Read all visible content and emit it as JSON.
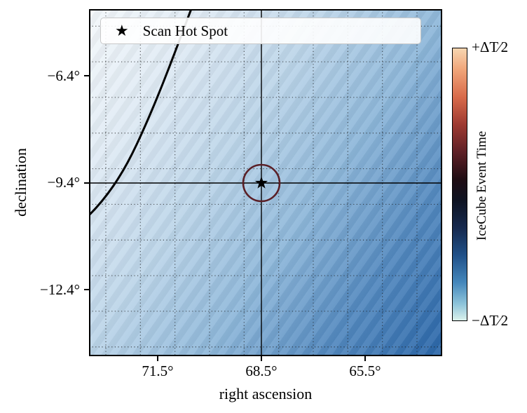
{
  "chart_data": {
    "type": "heatmap",
    "title": "",
    "xlabel": "right ascension",
    "ylabel": "declination",
    "x_ticks": [
      "71.5°",
      "68.5°",
      "65.5°"
    ],
    "x_tick_values_deg": [
      71.5,
      68.5,
      65.5
    ],
    "y_ticks": [
      "−6.4°",
      "−9.4°",
      "−12.4°"
    ],
    "y_tick_values_deg": [
      -6.4,
      -9.4,
      -12.4
    ],
    "x_axis_reversed": true,
    "x_range_deg": [
      73.5,
      63.3
    ],
    "y_range_deg": [
      -14.3,
      -4.5
    ],
    "grid": {
      "style": "dotted",
      "spacing_deg": 1
    },
    "legend": {
      "marker": "star",
      "marker_glyph": "★",
      "label": "Scan Hot Spot",
      "position": "upper center"
    },
    "hot_spot": {
      "ra_deg": 68.5,
      "dec_deg": -9.4,
      "marker": "star",
      "color": "#000000"
    },
    "contour_circle": {
      "ra_deg": 68.5,
      "dec_deg": -9.4,
      "radius_deg": 0.55,
      "color": "#5a1f26"
    },
    "crosshair": {
      "ra_deg": 68.5,
      "dec_deg": -9.4,
      "color": "#000000"
    },
    "overlay_curve": {
      "color": "#000000",
      "approx_points_ra_dec": [
        [
          70.6,
          -4.5
        ],
        [
          72.3,
          -7.9
        ],
        [
          73.5,
          -10.3
        ]
      ]
    },
    "heatmap_gradient": {
      "angle_deg": 125,
      "stops": [
        {
          "pos": 0,
          "color": "#f4f8fb"
        },
        {
          "pos": 20,
          "color": "#dfeaf4"
        },
        {
          "pos": 40,
          "color": "#bcd5e9"
        },
        {
          "pos": 60,
          "color": "#8fb8da"
        },
        {
          "pos": 80,
          "color": "#5389bf"
        },
        {
          "pos": 100,
          "color": "#2a66a8"
        }
      ]
    },
    "colorbar": {
      "label": "IceCube Event Time",
      "top_tick": "+ΔT∕2",
      "bottom_tick": "−ΔT∕2",
      "gradient_stops_top_to_bottom": [
        {
          "pos": 0,
          "color": "#f7d6b1"
        },
        {
          "pos": 8,
          "color": "#f0a478"
        },
        {
          "pos": 18,
          "color": "#d86a4a"
        },
        {
          "pos": 28,
          "color": "#9e3a31"
        },
        {
          "pos": 38,
          "color": "#5f2026"
        },
        {
          "pos": 48,
          "color": "#200d13"
        },
        {
          "pos": 56,
          "color": "#0e1322"
        },
        {
          "pos": 66,
          "color": "#16294e"
        },
        {
          "pos": 76,
          "color": "#205088"
        },
        {
          "pos": 86,
          "color": "#4487bb"
        },
        {
          "pos": 94,
          "color": "#8ec4da"
        },
        {
          "pos": 100,
          "color": "#dbf2ec"
        }
      ]
    }
  }
}
